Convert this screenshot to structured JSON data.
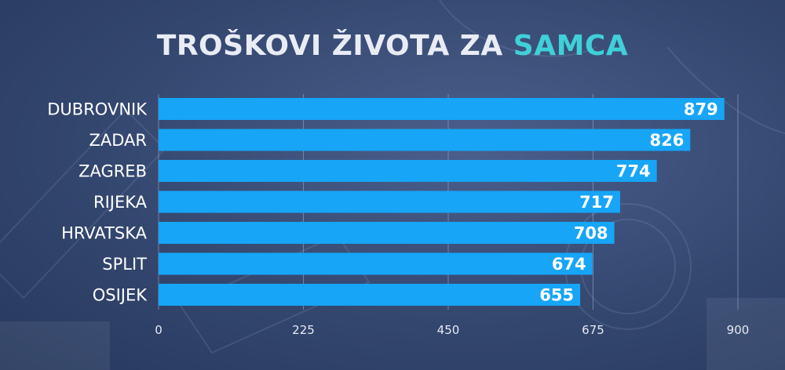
{
  "header": {
    "title_main": "TROŠKOVI ŽIVOTA ZA",
    "title_accent": "SAMCA"
  },
  "colors": {
    "bar": "#16a5f7",
    "title_accent": "#3fd0d8",
    "text": "#ffffff",
    "gridline": "#8c9ab8"
  },
  "chart_data": {
    "type": "bar",
    "orientation": "horizontal",
    "categories": [
      "DUBROVNIK",
      "ZADAR",
      "ZAGREB",
      "RIJEKA",
      "HRVATSKA",
      "SPLIT",
      "OSIJEK"
    ],
    "values": [
      879,
      826,
      774,
      717,
      708,
      674,
      655
    ],
    "title": "TROŠKOVI ŽIVOTA ZA SAMCA",
    "xlim": [
      0,
      900
    ],
    "xticks": [
      0,
      225,
      450,
      675,
      900
    ],
    "grid": true,
    "data_labels": true
  }
}
